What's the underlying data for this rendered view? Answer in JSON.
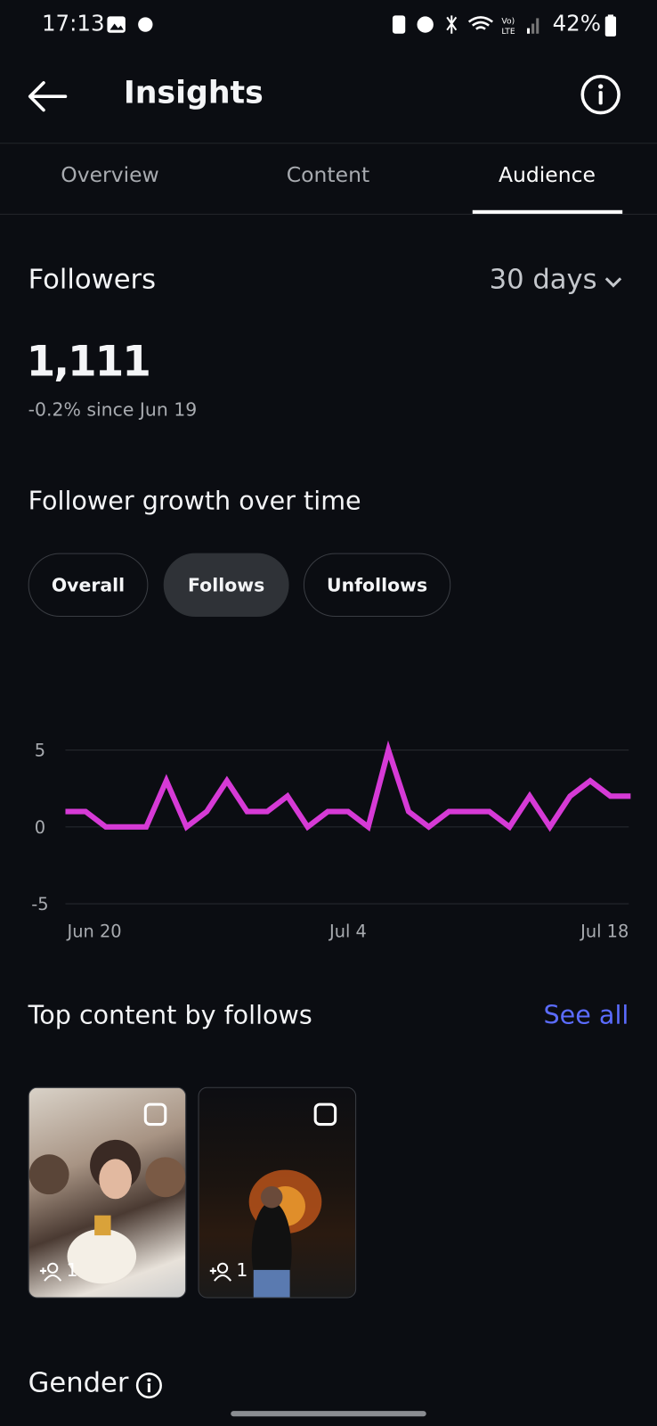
{
  "status_bar": {
    "time": "17:13",
    "battery": "42%"
  },
  "header": {
    "title": "Insights"
  },
  "tabs": {
    "items": [
      "Overview",
      "Content",
      "Audience"
    ],
    "active": 2
  },
  "followers": {
    "title": "Followers",
    "period": "30 days",
    "count": "1,111",
    "change": "-0.2% since Jun 19"
  },
  "filters": {
    "items": [
      "Overall",
      "Follows",
      "Unfollows"
    ],
    "selected": 1
  },
  "chart_data": {
    "type": "line",
    "title": "Follower growth over time",
    "categories": [
      "Jun 20",
      null,
      null,
      null,
      null,
      null,
      null,
      null,
      null,
      null,
      null,
      null,
      null,
      null,
      "Jul 4",
      null,
      null,
      null,
      null,
      null,
      null,
      null,
      null,
      null,
      null,
      null,
      null,
      null,
      "Jul 18"
    ],
    "series": [
      {
        "name": "Follows",
        "color": "#d63ad6",
        "values": [
          1,
          1,
          0,
          0,
          0,
          3,
          0,
          1,
          3,
          1,
          1,
          2,
          0,
          1,
          1,
          0,
          5,
          1,
          0,
          1,
          1,
          1,
          0,
          2,
          0,
          2,
          3,
          2,
          2
        ]
      }
    ],
    "ylim": [
      -5,
      5
    ],
    "yticks": [
      -5,
      0,
      5
    ],
    "grid": true
  },
  "top_content": {
    "title": "Top content by follows",
    "link": "See all",
    "items": [
      {
        "follows": "1"
      },
      {
        "follows": "1"
      }
    ]
  },
  "gender": {
    "title": "Gender"
  }
}
